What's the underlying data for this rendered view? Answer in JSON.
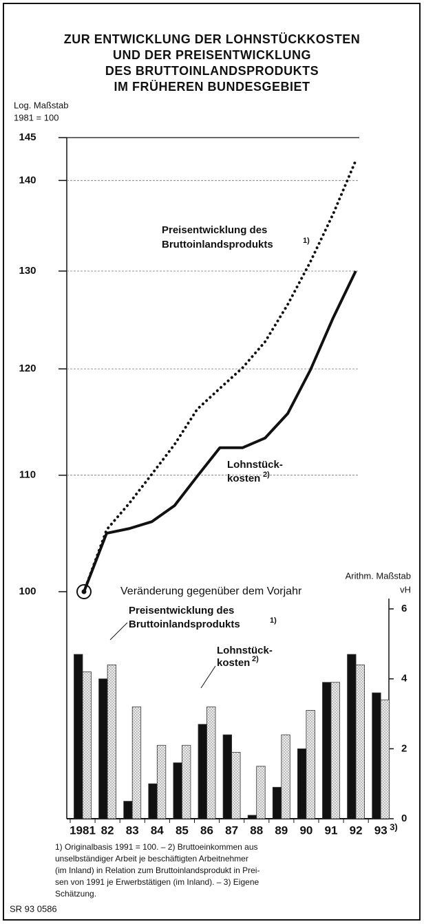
{
  "title_lines": [
    "ZUR ENTWICKLUNG DER LOHNSTÜCKKOSTEN",
    "UND DER PREISENTWICKLUNG",
    "DES BRUTTOINLANDSPRODUKTS",
    "IM FRÜHEREN BUNDESGEBIET"
  ],
  "chart_data": [
    {
      "type": "line",
      "scale_label_lines": [
        "Log. Maßstab",
        "1981 = 100"
      ],
      "log_scale": true,
      "ylim": [
        100,
        145
      ],
      "yticks": [
        145,
        140,
        130,
        120,
        110,
        100
      ],
      "grid": true,
      "series": [
        {
          "style": "dotted",
          "color": "#111",
          "values": [
            100,
            105.2,
            107.5,
            110.1,
            112.8,
            116.1,
            118.1,
            120.1,
            122.7,
            126.5,
            131.0,
            136.2,
            142.3
          ]
        },
        {
          "style": "solid",
          "color": "#111",
          "values": [
            100,
            104.9,
            105.3,
            105.9,
            107.3,
            109.9,
            112.5,
            112.5,
            113.4,
            115.7,
            119.9,
            125.1,
            130.0
          ]
        }
      ],
      "annotations": [
        {
          "lines": [
            "Preisentwicklung des",
            "Bruttoinlandsprodukts"
          ],
          "note": "1)"
        },
        {
          "lines": [
            "Lohnstück-",
            "kosten"
          ],
          "note": "2)"
        }
      ],
      "base_label": "Veränderung gegenüber dem Vorjahr"
    },
    {
      "type": "bar",
      "scale_label_lines": [
        "Arithm. Maßstab",
        "vH"
      ],
      "categories": [
        "1981",
        "82",
        "83",
        "84",
        "85",
        "86",
        "87",
        "88",
        "89",
        "90",
        "91",
        "92",
        "93"
      ],
      "last_category_note": "3)",
      "ylim": [
        0,
        6
      ],
      "yticks": [
        0,
        2,
        4,
        6
      ],
      "series": [
        {
          "color": "#111",
          "pattern": "solid",
          "values": [
            4.7,
            4.0,
            0.5,
            1.0,
            1.6,
            2.7,
            2.4,
            0.1,
            0.9,
            2.0,
            3.9,
            4.7,
            3.6
          ]
        },
        {
          "color": "#e4e4e4",
          "pattern": "dots",
          "values": [
            4.2,
            4.4,
            3.2,
            2.1,
            2.1,
            3.2,
            1.9,
            1.5,
            2.4,
            3.1,
            3.9,
            4.4,
            3.4
          ]
        }
      ],
      "annotations": [
        {
          "lines": [
            "Preisentwicklung des",
            "Bruttoinlandsprodukts"
          ],
          "note": "1)"
        },
        {
          "lines": [
            "Lohnstück-",
            "kosten"
          ],
          "note": "2)"
        }
      ]
    }
  ],
  "footnote_lines": [
    "1) Originalbasis 1991 = 100. – 2) Bruttoeinkommen aus",
    "unselbständiger Arbeit je beschäftigten Arbeitnehmer",
    "(im Inland) in Relation zum Bruttoinlandsprodukt in Prei-",
    "sen von 1991 je Erwerbstätigen (im Inland). – 3) Eigene",
    "Schätzung."
  ],
  "source": "SR 93 0586"
}
